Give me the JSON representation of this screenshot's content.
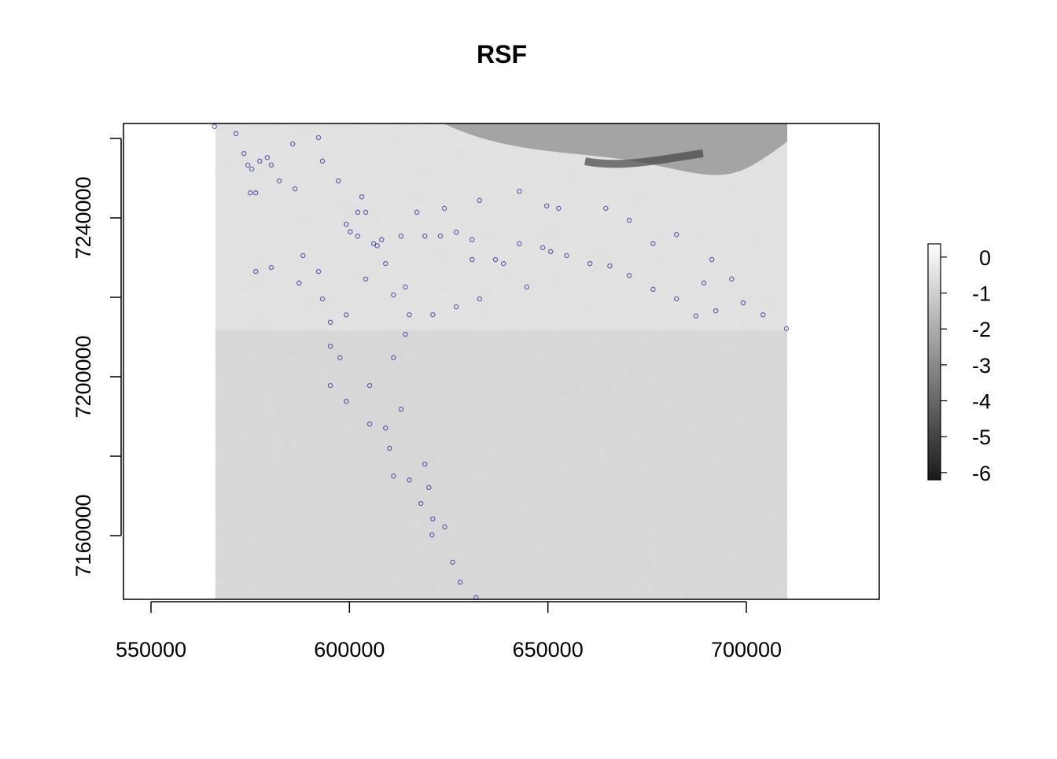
{
  "chart_data": {
    "type": "scatter",
    "title": "RSF",
    "xlim": [
      543065,
      733486
    ],
    "ylim": [
      7143960,
      7263760
    ],
    "xticks": [
      550000,
      600000,
      650000,
      700000
    ],
    "yticks": [
      7160000,
      7200000,
      7240000
    ],
    "yticks_unlabeled": [
      7180000,
      7220000,
      7260000
    ],
    "raster_xlim": [
      566240,
      710300
    ],
    "color": "#00008b",
    "x": [
      566000,
      571400,
      573400,
      574400,
      575400,
      577400,
      579300,
      580300,
      576400,
      575000,
      582300,
      586300,
      585700,
      592200,
      593200,
      597200,
      603100,
      604100,
      599200,
      602100,
      606100,
      608100,
      613000,
      619000,
      622900,
      626900,
      630900,
      636800,
      642800,
      648700,
      654700,
      660600,
      664600,
      649700,
      642800,
      632800,
      623900,
      617000,
      670500,
      676500,
      682400,
      670500,
      676500,
      682400,
      687300,
      692300,
      696300,
      699200,
      704200,
      710100,
      691300,
      665600,
      580300,
      576400,
      587300,
      588300,
      592200,
      593200,
      595200,
      595200,
      597600,
      595200,
      599200,
      605100,
      605100,
      609100,
      611100,
      614100,
      615100,
      614100,
      609100,
      611100,
      621000,
      626900,
      632800,
      644700,
      604100,
      599200,
      613000,
      610100,
      611100,
      615100,
      619000,
      620000,
      618000,
      621000,
      624000,
      620800,
      626000,
      627900,
      631900,
      602100,
      600200,
      607000,
      630900,
      638800,
      689300,
      650700,
      652700
    ],
    "y": [
      7263000,
      7261200,
      7256200,
      7253300,
      7252300,
      7254300,
      7255200,
      7253300,
      7246300,
      7246300,
      7249300,
      7247300,
      7258600,
      7260200,
      7254300,
      7249300,
      7245300,
      7241400,
      7238400,
      7235400,
      7233500,
      7234500,
      7235400,
      7235400,
      7235400,
      7236400,
      7234500,
      7229500,
      7233500,
      7232500,
      7230500,
      7228500,
      7242400,
      7243000,
      7246700,
      7244400,
      7242400,
      7241400,
      7239400,
      7233500,
      7235800,
      7225500,
      7222000,
      7219600,
      7215300,
      7216600,
      7224600,
      7218600,
      7215600,
      7212100,
      7229500,
      7227900,
      7227500,
      7226500,
      7223600,
      7230500,
      7226500,
      7219600,
      7213700,
      7207700,
      7204800,
      7197800,
      7193800,
      7197800,
      7188100,
      7187100,
      7204800,
      7210700,
      7215600,
      7222600,
      7228500,
      7220600,
      7215600,
      7217600,
      7219600,
      7222600,
      7224600,
      7215600,
      7191800,
      7182000,
      7175000,
      7174000,
      7178000,
      7172100,
      7168100,
      7164200,
      7162200,
      7160200,
      7153300,
      7148300,
      7144400,
      7241400,
      7236500,
      7233000,
      7229500,
      7228500,
      7223600,
      7231500,
      7242400
    ],
    "colorbar": {
      "lim": [
        -6.2,
        0.37
      ],
      "ticks": [
        0,
        -1,
        -2,
        -3,
        -4,
        -5,
        -6
      ],
      "colors": [
        "#1a1a1a",
        "#ffffff"
      ]
    }
  }
}
